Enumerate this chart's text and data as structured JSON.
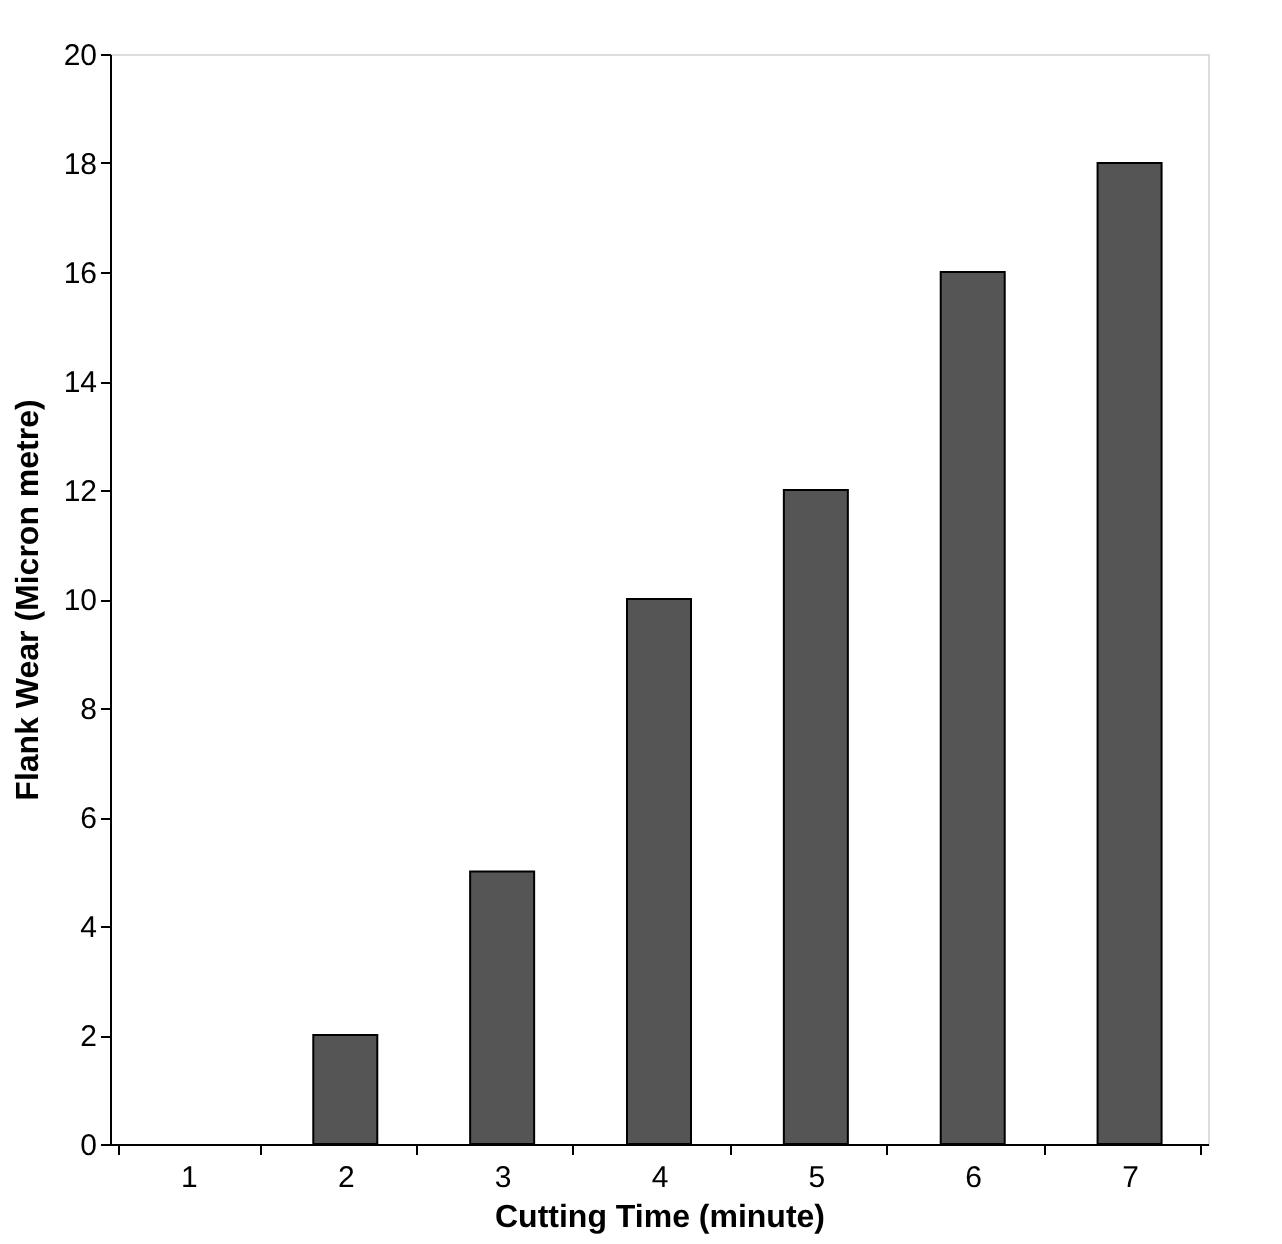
{
  "chart_data": {
    "type": "bar",
    "xlabel": "Cutting Time (minute)",
    "ylabel": "Flank Wear (Micron metre)",
    "categories": [
      "1",
      "2",
      "3",
      "4",
      "5",
      "6",
      "7"
    ],
    "values": [
      0,
      2,
      5,
      10,
      12,
      16,
      18
    ],
    "color": "#555555",
    "ylim": [
      0,
      20
    ],
    "yticks": [
      0,
      2,
      4,
      6,
      8,
      10,
      12,
      14,
      16,
      18,
      20
    ],
    "grid": false
  }
}
